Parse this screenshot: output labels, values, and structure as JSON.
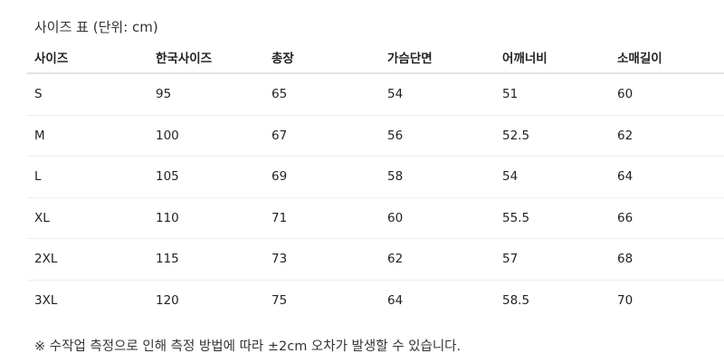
{
  "title": "사이즈 표 (단위: cm)",
  "table": {
    "headers": [
      "사이즈",
      "한국사이즈",
      "총장",
      "가슴단면",
      "어깨너비",
      "소매길이"
    ],
    "rows": [
      [
        "S",
        "95",
        "65",
        "54",
        "51",
        "60"
      ],
      [
        "M",
        "100",
        "67",
        "56",
        "52.5",
        "62"
      ],
      [
        "L",
        "105",
        "69",
        "58",
        "54",
        "64"
      ],
      [
        "XL",
        "110",
        "71",
        "60",
        "55.5",
        "66"
      ],
      [
        "2XL",
        "115",
        "73",
        "62",
        "57",
        "68"
      ],
      [
        "3XL",
        "120",
        "75",
        "64",
        "58.5",
        "70"
      ]
    ]
  },
  "note": "※ 수작업 측정으로 인해 측정 방법에 따라 ±2cm 오차가 발생할 수 있습니다."
}
